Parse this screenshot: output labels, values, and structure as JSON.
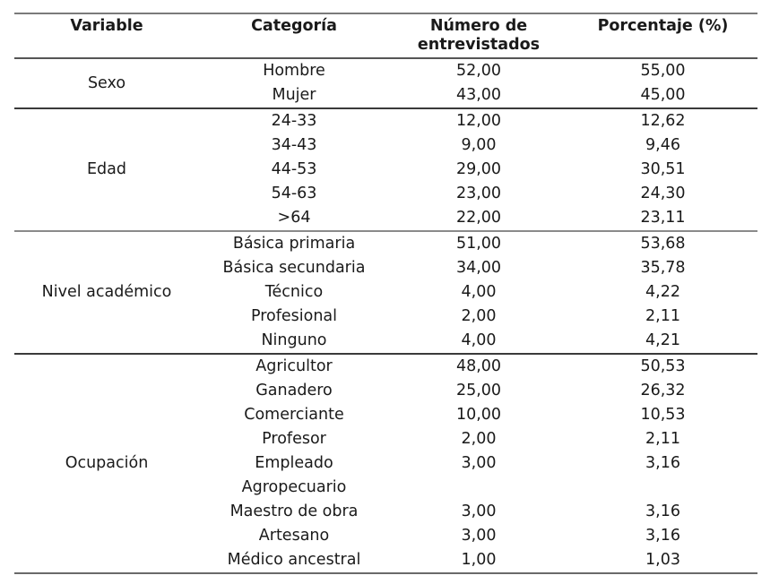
{
  "table": {
    "headers": {
      "variable": "Variable",
      "categoria": "Categoría",
      "numero_line1": "Número de",
      "numero_line2": "entrevistados",
      "porcentaje": "Porcentaje (%)"
    },
    "groups": [
      {
        "variable": "Sexo",
        "rows": [
          {
            "categoria": "Hombre",
            "numero": "52,00",
            "porcentaje": "55,00"
          },
          {
            "categoria": "Mujer",
            "numero": "43,00",
            "porcentaje": "45,00"
          }
        ]
      },
      {
        "variable": "Edad",
        "rows": [
          {
            "categoria": "24-33",
            "numero": "12,00",
            "porcentaje": "12,62"
          },
          {
            "categoria": "34-43",
            "numero": "9,00",
            "porcentaje": "9,46"
          },
          {
            "categoria": "44-53",
            "numero": "29,00",
            "porcentaje": "30,51"
          },
          {
            "categoria": "54-63",
            "numero": "23,00",
            "porcentaje": "24,30"
          },
          {
            "categoria": ">64",
            "numero": "22,00",
            "porcentaje": "23,11"
          }
        ]
      },
      {
        "variable": "Nivel académico",
        "rows": [
          {
            "categoria": "Básica primaria",
            "numero": "51,00",
            "porcentaje": "53,68"
          },
          {
            "categoria": "Básica secundaria",
            "numero": "34,00",
            "porcentaje": "35,78"
          },
          {
            "categoria": "Técnico",
            "numero": "4,00",
            "porcentaje": "4,22"
          },
          {
            "categoria": "Profesional",
            "numero": "2,00",
            "porcentaje": "2,11"
          },
          {
            "categoria": "Ninguno",
            "numero": "4,00",
            "porcentaje": "4,21"
          }
        ]
      },
      {
        "variable": "Ocupación",
        "rows": [
          {
            "categoria": "Agricultor",
            "numero": "48,00",
            "porcentaje": "50,53"
          },
          {
            "categoria": "Ganadero",
            "numero": "25,00",
            "porcentaje": "26,32"
          },
          {
            "categoria": "Comerciante",
            "numero": "10,00",
            "porcentaje": "10,53"
          },
          {
            "categoria": "Profesor",
            "numero": "2,00",
            "porcentaje": "2,11"
          },
          {
            "categoria": "Empleado",
            "categoria_line2": "Agropecuario",
            "numero": "3,00",
            "porcentaje": "3,16"
          },
          {
            "categoria": "Maestro de obra",
            "numero": "3,00",
            "porcentaje": "3,16"
          },
          {
            "categoria": "Artesano",
            "numero": "3,00",
            "porcentaje": "3,16"
          },
          {
            "categoria": "Médico ancestral",
            "numero": "1,00",
            "porcentaje": "1,03"
          }
        ]
      }
    ]
  }
}
